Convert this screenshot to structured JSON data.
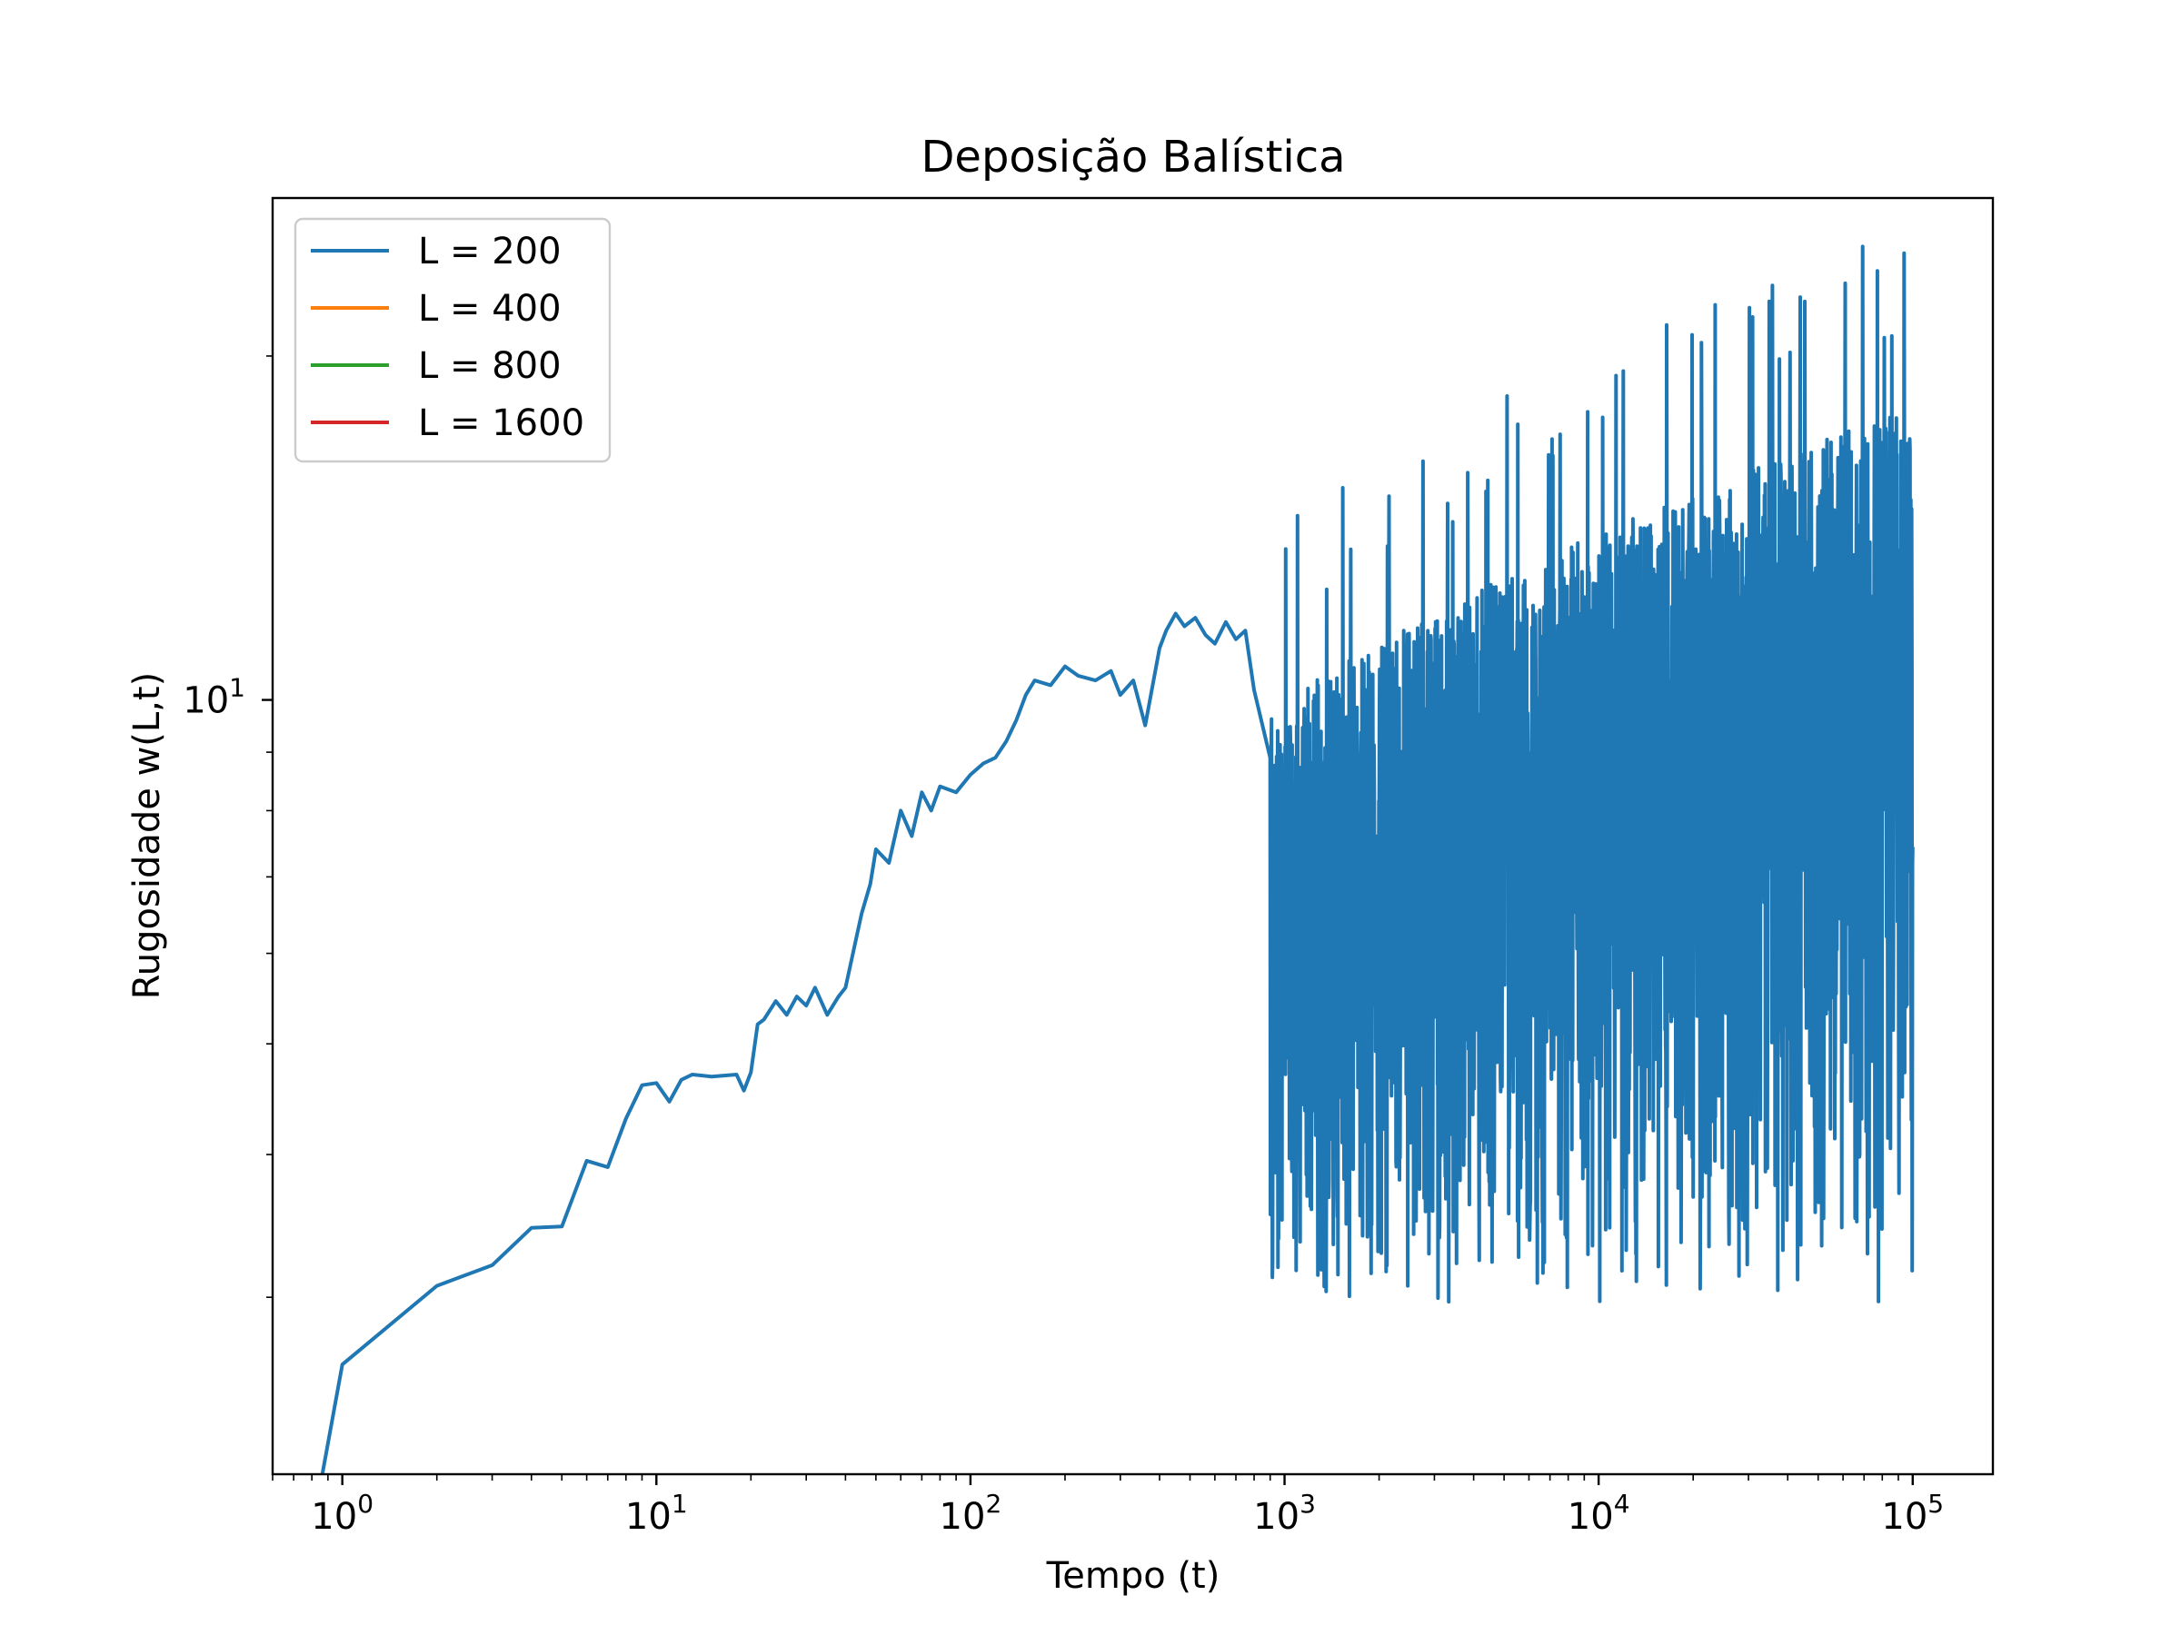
{
  "chart_data": {
    "type": "line",
    "title": "Deposição Balística",
    "xlabel": "Tempo (t)",
    "ylabel": "Rugosidade w(L,t)",
    "xscale": "log",
    "yscale": "log",
    "xlim": [
      0.6,
      180000
    ],
    "ylim": [
      2.1,
      27.5
    ],
    "grid": false,
    "legend_position": "top-left",
    "x_ticks": [
      {
        "value": 1,
        "base": "10",
        "exp": "0"
      },
      {
        "value": 10,
        "base": "10",
        "exp": "1"
      },
      {
        "value": 100,
        "base": "10",
        "exp": "2"
      },
      {
        "value": 1000,
        "base": "10",
        "exp": "3"
      },
      {
        "value": 10000,
        "base": "10",
        "exp": "4"
      },
      {
        "value": 100000,
        "base": "10",
        "exp": "5"
      }
    ],
    "y_ticks": [
      {
        "value": 10,
        "base": "10",
        "exp": "1"
      }
    ],
    "series": [
      {
        "name": "L = 200",
        "color": "#1f77b4",
        "x": [
          0.85,
          1,
          2,
          3,
          4,
          5,
          6,
          7,
          8,
          9,
          10,
          11,
          12,
          13,
          15,
          18,
          19,
          20,
          21,
          22,
          24,
          26,
          28,
          30,
          32,
          35,
          38,
          40,
          45,
          48,
          50,
          55,
          60,
          65,
          70,
          75,
          80,
          90,
          100,
          110,
          120,
          130,
          140,
          150,
          160,
          180,
          200,
          220,
          250,
          280,
          300,
          330,
          360,
          400,
          420,
          450,
          480,
          520,
          560,
          600,
          650,
          700,
          750,
          800,
          900
        ],
        "y": [
          2.05,
          2.62,
          3.07,
          3.2,
          3.45,
          3.46,
          3.95,
          3.9,
          4.3,
          4.6,
          4.62,
          4.45,
          4.65,
          4.7,
          4.68,
          4.7,
          4.55,
          4.72,
          5.2,
          5.25,
          5.45,
          5.3,
          5.5,
          5.4,
          5.6,
          5.3,
          5.5,
          5.6,
          6.5,
          6.9,
          7.4,
          7.2,
          8.0,
          7.6,
          8.3,
          8.0,
          8.4,
          8.3,
          8.6,
          8.8,
          8.9,
          9.2,
          9.6,
          10.1,
          10.4,
          10.3,
          10.7,
          10.5,
          10.4,
          10.6,
          10.1,
          10.4,
          9.5,
          11.1,
          11.5,
          11.9,
          11.6,
          11.8,
          11.4,
          11.2,
          11.7,
          11.3,
          11.5,
          10.2,
          8.9
        ]
      },
      {
        "name": "L = 400",
        "color": "#ff7f0e",
        "x": [],
        "y": []
      },
      {
        "name": "L = 800",
        "color": "#2ca02c",
        "x": [],
        "y": []
      },
      {
        "name": "L = 1600",
        "color": "#d62728",
        "x": [],
        "y": []
      }
    ]
  }
}
